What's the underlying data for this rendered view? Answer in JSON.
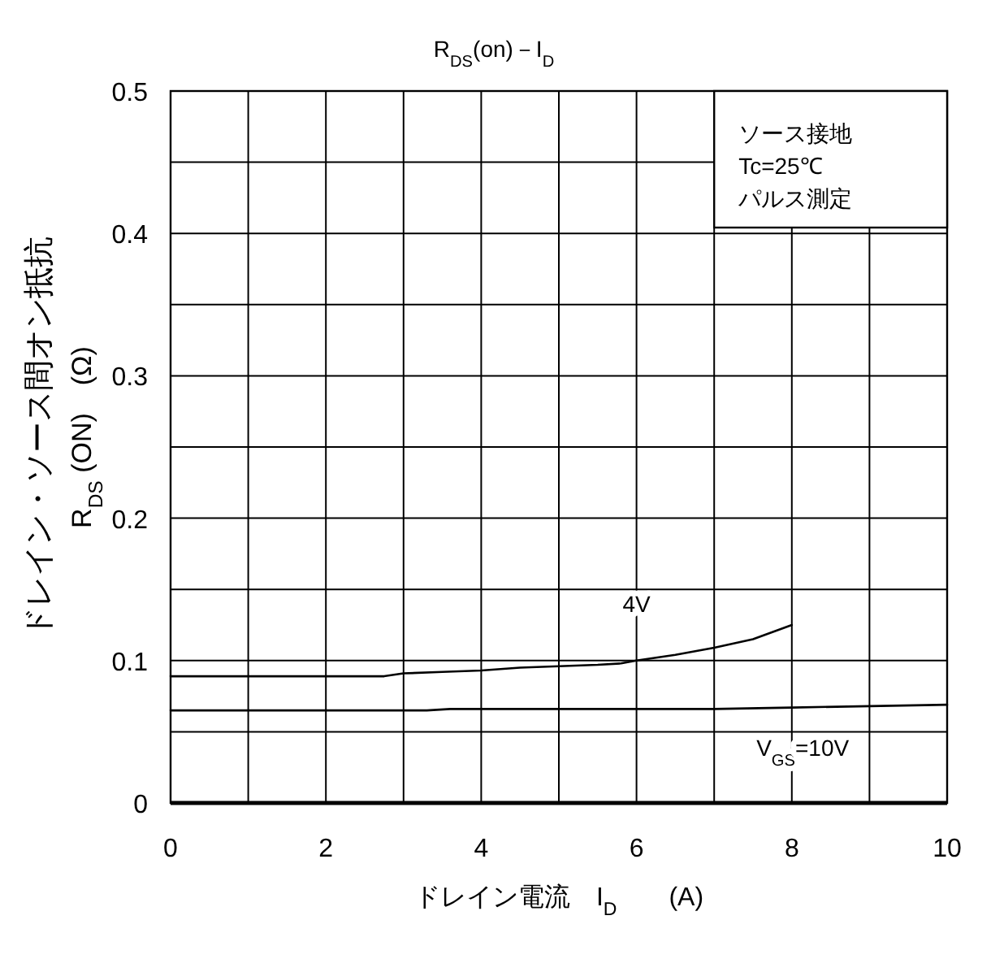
{
  "chart_data": {
    "type": "line",
    "title": "R$_{DS}$(on)－I$_{D}$",
    "xlabel": "ドレイン電流　I$_{D}$　　(A)",
    "ylabel": "ドレイン・ソース間オン抵抗\nR$_{DS}$ (ON)　(Ω)",
    "annotations": [
      "ソース接地",
      "Tc=25℃",
      "パルス測定"
    ],
    "xlim": [
      0,
      10
    ],
    "ylim": [
      0,
      0.5
    ],
    "xticks": [
      0,
      {
        "value": 1,
        "label": null
      },
      2,
      {
        "value": 3,
        "label": null
      },
      4,
      {
        "value": 5,
        "label": null
      },
      6,
      {
        "value": 7,
        "label": null
      },
      8,
      {
        "value": 9,
        "label": null
      },
      10
    ],
    "yticks": [
      0,
      {
        "value": 0.05,
        "label": null
      },
      0.1,
      {
        "value": 0.15,
        "label": null
      },
      0.2,
      {
        "value": 0.25,
        "label": null
      },
      0.3,
      {
        "value": 0.35,
        "label": null
      },
      0.4,
      {
        "value": 0.45,
        "label": null
      },
      0.5
    ],
    "grid": true,
    "marker": "none",
    "line_style": "solid",
    "legend": false,
    "series": [
      {
        "name": "4V",
        "color": "#000000",
        "x": [
          0,
          2.75,
          3,
          3.5,
          4,
          4.5,
          5,
          5.5,
          5.8,
          6,
          6.5,
          7,
          7.5,
          8
        ],
        "values": [
          0.089,
          0.089,
          0.091,
          0.092,
          0.093,
          0.095,
          0.096,
          0.097,
          0.098,
          0.1,
          0.104,
          0.109,
          0.115,
          0.125
        ]
      },
      {
        "name": "V$_{GS}$=10V",
        "color": "#000000",
        "x": [
          0,
          3.3,
          3.6,
          5,
          7,
          8,
          9,
          10
        ],
        "values": [
          0.065,
          0.065,
          0.066,
          0.066,
          0.066,
          0.067,
          0.068,
          0.069
        ]
      }
    ]
  }
}
